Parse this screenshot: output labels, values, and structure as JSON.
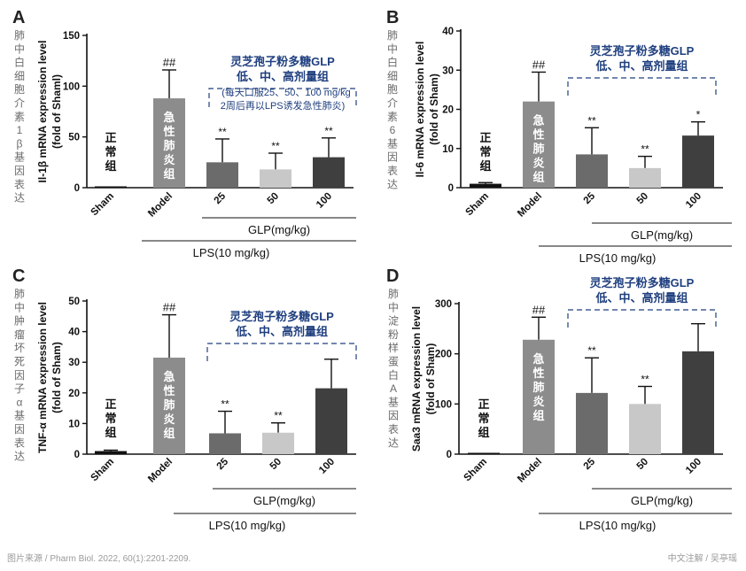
{
  "footer": {
    "source": "图片来源 / Pharm Biol. 2022, 60(1):2201-2209.",
    "credit": "中文注解 / 吴亭瑶"
  },
  "colors": {
    "sham": "#111111",
    "model": "#8c8c8c",
    "dose25": "#6b6b6b",
    "dose50": "#c8c8c8",
    "dose100": "#3f3f3f",
    "annotation": "#1f3f7f"
  },
  "chart_data": [
    {
      "panel": "A",
      "type": "bar",
      "categories": [
        "Sham",
        "Model",
        "25",
        "50",
        "100"
      ],
      "values": [
        1,
        88,
        25,
        18,
        30
      ],
      "errors": [
        0,
        28,
        23,
        16,
        19
      ],
      "significance": [
        "",
        "##",
        "**",
        "**",
        "**"
      ],
      "ylabel": "Il-1β  mRNA expression level",
      "ylabel2": "(fold of Shaml)",
      "ylim": [
        0,
        150
      ],
      "yticks": [
        0,
        50,
        100,
        150
      ],
      "side_label": "肺中白细胞介素1β基因表达",
      "sham_label": "正常组",
      "model_label": "急性肺炎组",
      "glp_label": "GLP(mg/kg)",
      "lps_label": "LPS(10 mg/kg)",
      "group_title": "灵芝孢子粉多糖GLP",
      "group_subtitle": "低、中、高剂量组",
      "note1": "(每天口服25、50、100 mg/kg",
      "note2": "2周后再以LPS诱发急性肺炎)"
    },
    {
      "panel": "B",
      "type": "bar",
      "categories": [
        "Sham",
        "Model",
        "25",
        "50",
        "100"
      ],
      "values": [
        1,
        22,
        8.5,
        5,
        13.3
      ],
      "errors": [
        0.3,
        7.5,
        6.8,
        3,
        3.5
      ],
      "significance": [
        "",
        "##",
        "**",
        "**",
        "*"
      ],
      "ylabel": "Il-6  mRNA expression level",
      "ylabel2": "(fold of Sham)",
      "ylim": [
        0,
        40
      ],
      "yticks": [
        0,
        10,
        20,
        30,
        40
      ],
      "side_label": "肺中白细胞介素6基因表达",
      "sham_label": "正常组",
      "model_label": "急性肺炎组",
      "glp_label": "GLP(mg/kg)",
      "lps_label": "LPS(10 mg/kg)",
      "group_title": "灵芝孢子粉多糖GLP",
      "group_subtitle": "低、中、高剂量组"
    },
    {
      "panel": "C",
      "type": "bar",
      "categories": [
        "Sham",
        "Model",
        "25",
        "50",
        "100"
      ],
      "values": [
        1,
        31.5,
        6.8,
        7,
        21.5
      ],
      "errors": [
        0.3,
        14,
        7.2,
        3.2,
        9.5
      ],
      "significance": [
        "",
        "##",
        "**",
        "**",
        ""
      ],
      "ylabel": "TNF-α mRNA expression level",
      "ylabel2": "(fold of Sham)",
      "ylim": [
        0,
        50
      ],
      "yticks": [
        0,
        10,
        20,
        30,
        40,
        50
      ],
      "side_label": "肺中肿瘤坏死因子α基因表达",
      "sham_label": "正常组",
      "model_label": "急性肺炎组",
      "glp_label": "GLP(mg/kg)",
      "lps_label": "LPS(10 mg/kg)",
      "group_title": "灵芝孢子粉多糖GLP",
      "group_subtitle": "低、中、高剂量组"
    },
    {
      "panel": "D",
      "type": "bar",
      "categories": [
        "Sham",
        "Model",
        "25",
        "50",
        "100"
      ],
      "values": [
        1,
        228,
        122,
        100,
        205
      ],
      "errors": [
        0,
        45,
        70,
        35,
        55
      ],
      "significance": [
        "",
        "##",
        "**",
        "**",
        ""
      ],
      "ylabel": "Saa3 mRNA expression level",
      "ylabel2": "(fold of Sham)",
      "ylim": [
        0,
        300
      ],
      "yticks": [
        0,
        100,
        200,
        300
      ],
      "side_label": "肺中淀粉样蛋白A基因表达",
      "sham_label": "正常组",
      "model_label": "急性肺炎组",
      "glp_label": "GLP(mg/kg)",
      "lps_label": "LPS(10 mg/kg)",
      "group_title": "灵芝孢子粉多糖GLP",
      "group_subtitle": "低、中、高剂量组"
    }
  ]
}
